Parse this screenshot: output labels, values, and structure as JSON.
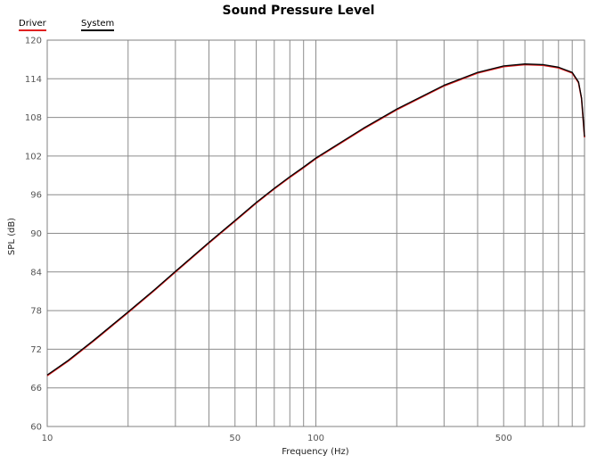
{
  "chart_data": {
    "type": "line",
    "title": "Sound Pressure Level",
    "xlabel": "Frequency (Hz)",
    "ylabel": "SPL (dB)",
    "xscale": "log",
    "xlim": [
      10,
      1000
    ],
    "ylim": [
      60,
      120
    ],
    "x_tick_labels": [
      {
        "value": 10,
        "label": "10"
      },
      {
        "value": 50,
        "label": "50"
      },
      {
        "value": 100,
        "label": "100"
      },
      {
        "value": 500,
        "label": "500"
      }
    ],
    "y_ticks": [
      60,
      66,
      72,
      78,
      84,
      90,
      96,
      102,
      108,
      114,
      120
    ],
    "grid": true,
    "legend_position": "top-left",
    "series": [
      {
        "name": "Driver",
        "color": "#e02020",
        "points": [
          [
            10,
            68
          ],
          [
            12,
            70.3
          ],
          [
            15,
            73.5
          ],
          [
            20,
            77.8
          ],
          [
            25,
            81.2
          ],
          [
            30,
            84.1
          ],
          [
            40,
            88.6
          ],
          [
            50,
            92
          ],
          [
            60,
            94.8
          ],
          [
            70,
            97
          ],
          [
            80,
            98.8
          ],
          [
            90,
            100.3
          ],
          [
            100,
            101.7
          ],
          [
            150,
            106.3
          ],
          [
            200,
            109.3
          ],
          [
            300,
            113
          ],
          [
            400,
            115
          ],
          [
            500,
            116
          ],
          [
            600,
            116.3
          ],
          [
            700,
            116.2
          ],
          [
            800,
            115.8
          ],
          [
            900,
            115
          ],
          [
            950,
            113.5
          ],
          [
            975,
            111
          ],
          [
            1000,
            105
          ]
        ]
      },
      {
        "name": "System",
        "color": "#000000",
        "points": [
          [
            10,
            68
          ],
          [
            12,
            70.3
          ],
          [
            15,
            73.5
          ],
          [
            20,
            77.8
          ],
          [
            25,
            81.2
          ],
          [
            30,
            84.1
          ],
          [
            40,
            88.6
          ],
          [
            50,
            92
          ],
          [
            60,
            94.8
          ],
          [
            70,
            97
          ],
          [
            80,
            98.8
          ],
          [
            90,
            100.3
          ],
          [
            100,
            101.7
          ],
          [
            150,
            106.3
          ],
          [
            200,
            109.3
          ],
          [
            300,
            113
          ],
          [
            400,
            115
          ],
          [
            500,
            116
          ],
          [
            600,
            116.3
          ],
          [
            700,
            116.2
          ],
          [
            800,
            115.8
          ],
          [
            900,
            115
          ],
          [
            950,
            113.5
          ],
          [
            975,
            111
          ],
          [
            1000,
            105
          ]
        ]
      }
    ]
  }
}
